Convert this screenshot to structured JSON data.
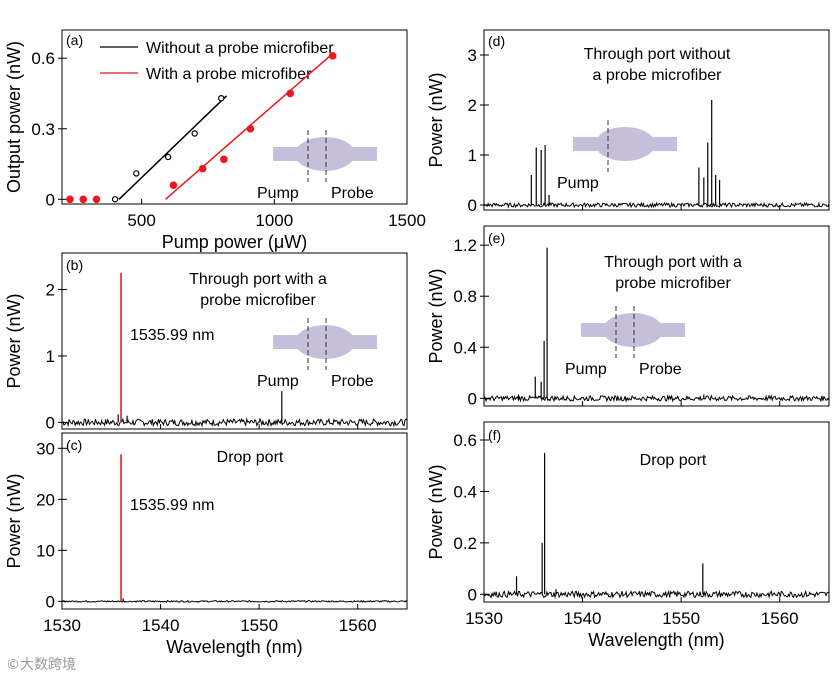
{
  "chart_data": [
    {
      "id": "a",
      "panel_label": "(a)",
      "type": "scatter",
      "xlabel": "Pump power (μW)",
      "ylabel": "Output power (nW)",
      "xlim": [
        200,
        1500
      ],
      "ylim": [
        -0.02,
        0.72
      ],
      "xticks": [
        500,
        1000,
        1500
      ],
      "yticks": [
        0,
        0.3,
        0.6
      ],
      "ytick_labels": [
        "0",
        "0.3",
        "0.6"
      ],
      "series": [
        {
          "name": "Without a probe microfiber",
          "color": "#000000",
          "marker": "open-circle",
          "x": [
            230,
            280,
            330,
            400,
            480,
            600,
            700,
            800
          ],
          "y": [
            0,
            0,
            0,
            0,
            0.11,
            0.18,
            0.28,
            0.43
          ],
          "fit": {
            "x": [
              415,
              820
            ],
            "y": [
              0,
              0.44
            ]
          }
        },
        {
          "name": "With a probe microfiber",
          "color": "#e8191f",
          "marker": "filled-circle",
          "x": [
            230,
            280,
            330,
            620,
            730,
            810,
            910,
            1060,
            1220
          ],
          "y": [
            0,
            0,
            0,
            0.06,
            0.13,
            0.17,
            0.3,
            0.45,
            0.61
          ],
          "fit": {
            "x": [
              590,
              1220
            ],
            "y": [
              0,
              0.62
            ]
          }
        }
      ],
      "inset": {
        "left_label": "Pump",
        "right_label": "Probe"
      }
    },
    {
      "id": "b",
      "panel_label": "(b)",
      "type": "line",
      "title": "Through port with a probe microfiber",
      "xlabel": "",
      "ylabel": "Power (nW)",
      "xlim": [
        1530,
        1565
      ],
      "ylim": [
        -0.1,
        2.55
      ],
      "yticks": [
        0,
        1,
        2
      ],
      "ytick_labels": [
        "0",
        "1",
        "2"
      ],
      "peaks": [
        {
          "x": 1535.99,
          "y": 2.25,
          "color": "#e8191f"
        },
        {
          "x": 1535.7,
          "y": 0.12,
          "color": "#000000"
        },
        {
          "x": 1536.6,
          "y": 0.1,
          "color": "#000000"
        },
        {
          "x": 1552.3,
          "y": 0.47,
          "color": "#000000"
        }
      ],
      "baseline_noise": 0.05,
      "annotation": "1535.99 nm",
      "inset": {
        "left_label": "Pump",
        "right_label": "Probe"
      }
    },
    {
      "id": "c",
      "panel_label": "(c)",
      "type": "line",
      "title": "Drop port",
      "xlabel": "Wavelength (nm)",
      "ylabel": "Power (nW)",
      "xlim": [
        1530,
        1565
      ],
      "ylim": [
        -1.5,
        33
      ],
      "xticks": [
        1530,
        1540,
        1550,
        1560
      ],
      "yticks": [
        0,
        10,
        20,
        30
      ],
      "ytick_labels": [
        "0",
        "10",
        "20",
        "30"
      ],
      "peaks": [
        {
          "x": 1535.99,
          "y": 28.8,
          "color": "#e8191f"
        },
        {
          "x": 1536.2,
          "y": 0.6,
          "color": "#000000"
        }
      ],
      "baseline_noise": 0.15,
      "annotation": "1535.99 nm"
    },
    {
      "id": "d",
      "panel_label": "(d)",
      "type": "line",
      "title": "Through port without a probe microfiber",
      "xlabel": "",
      "ylabel": "Power (nW)",
      "xlim": [
        1530,
        1565
      ],
      "ylim": [
        -0.1,
        3.5
      ],
      "yticks": [
        0,
        1,
        2,
        3
      ],
      "ytick_labels": [
        "0",
        "1",
        "2",
        "3"
      ],
      "peaks": [
        {
          "x": 1534.8,
          "y": 0.6,
          "color": "#000000"
        },
        {
          "x": 1535.3,
          "y": 1.15,
          "color": "#000000"
        },
        {
          "x": 1535.8,
          "y": 1.1,
          "color": "#000000"
        },
        {
          "x": 1536.2,
          "y": 1.2,
          "color": "#000000"
        },
        {
          "x": 1536.6,
          "y": 0.2,
          "color": "#000000"
        },
        {
          "x": 1551.8,
          "y": 0.75,
          "color": "#000000"
        },
        {
          "x": 1552.3,
          "y": 0.55,
          "color": "#000000"
        },
        {
          "x": 1552.7,
          "y": 1.25,
          "color": "#000000"
        },
        {
          "x": 1553.1,
          "y": 2.1,
          "color": "#000000"
        },
        {
          "x": 1553.5,
          "y": 0.6,
          "color": "#000000"
        },
        {
          "x": 1553.9,
          "y": 0.5,
          "color": "#000000"
        }
      ],
      "baseline_noise": 0.04,
      "inset": {
        "left_label": "Pump",
        "right_label": ""
      }
    },
    {
      "id": "e",
      "panel_label": "(e)",
      "type": "line",
      "title": "Through port with a probe microfiber",
      "xlabel": "",
      "ylabel": "Power (nW)",
      "xlim": [
        1530,
        1565
      ],
      "ylim": [
        -0.06,
        1.35
      ],
      "yticks": [
        0,
        0.4,
        0.8,
        1.2
      ],
      "ytick_labels": [
        "0",
        "0.4",
        "0.8",
        "1.2"
      ],
      "peaks": [
        {
          "x": 1533.5,
          "y": 0.03,
          "color": "#000000"
        },
        {
          "x": 1535.2,
          "y": 0.17,
          "color": "#000000"
        },
        {
          "x": 1535.8,
          "y": 0.13,
          "color": "#000000"
        },
        {
          "x": 1536.1,
          "y": 0.45,
          "color": "#000000"
        },
        {
          "x": 1536.4,
          "y": 1.18,
          "color": "#000000"
        },
        {
          "x": 1552.3,
          "y": 0.03,
          "color": "#000000"
        }
      ],
      "baseline_noise": 0.02,
      "inset": {
        "left_label": "Pump",
        "right_label": "Probe"
      }
    },
    {
      "id": "f",
      "panel_label": "(f)",
      "type": "line",
      "title": "Drop port",
      "xlabel": "Wavelength (nm)",
      "ylabel": "Power (nW)",
      "xlim": [
        1530,
        1565
      ],
      "ylim": [
        -0.03,
        0.67
      ],
      "xticks": [
        1530,
        1540,
        1550,
        1560
      ],
      "yticks": [
        0,
        0.2,
        0.4,
        0.6
      ],
      "ytick_labels": [
        "0",
        "0.2",
        "0.4",
        "0.6"
      ],
      "peaks": [
        {
          "x": 1533.3,
          "y": 0.07,
          "color": "#000000"
        },
        {
          "x": 1535.9,
          "y": 0.2,
          "color": "#000000"
        },
        {
          "x": 1536.15,
          "y": 0.55,
          "color": "#000000"
        },
        {
          "x": 1537.3,
          "y": 0.02,
          "color": "#000000"
        },
        {
          "x": 1552.2,
          "y": 0.12,
          "color": "#000000"
        }
      ],
      "baseline_noise": 0.012
    }
  ],
  "watermark": "大数跨境"
}
